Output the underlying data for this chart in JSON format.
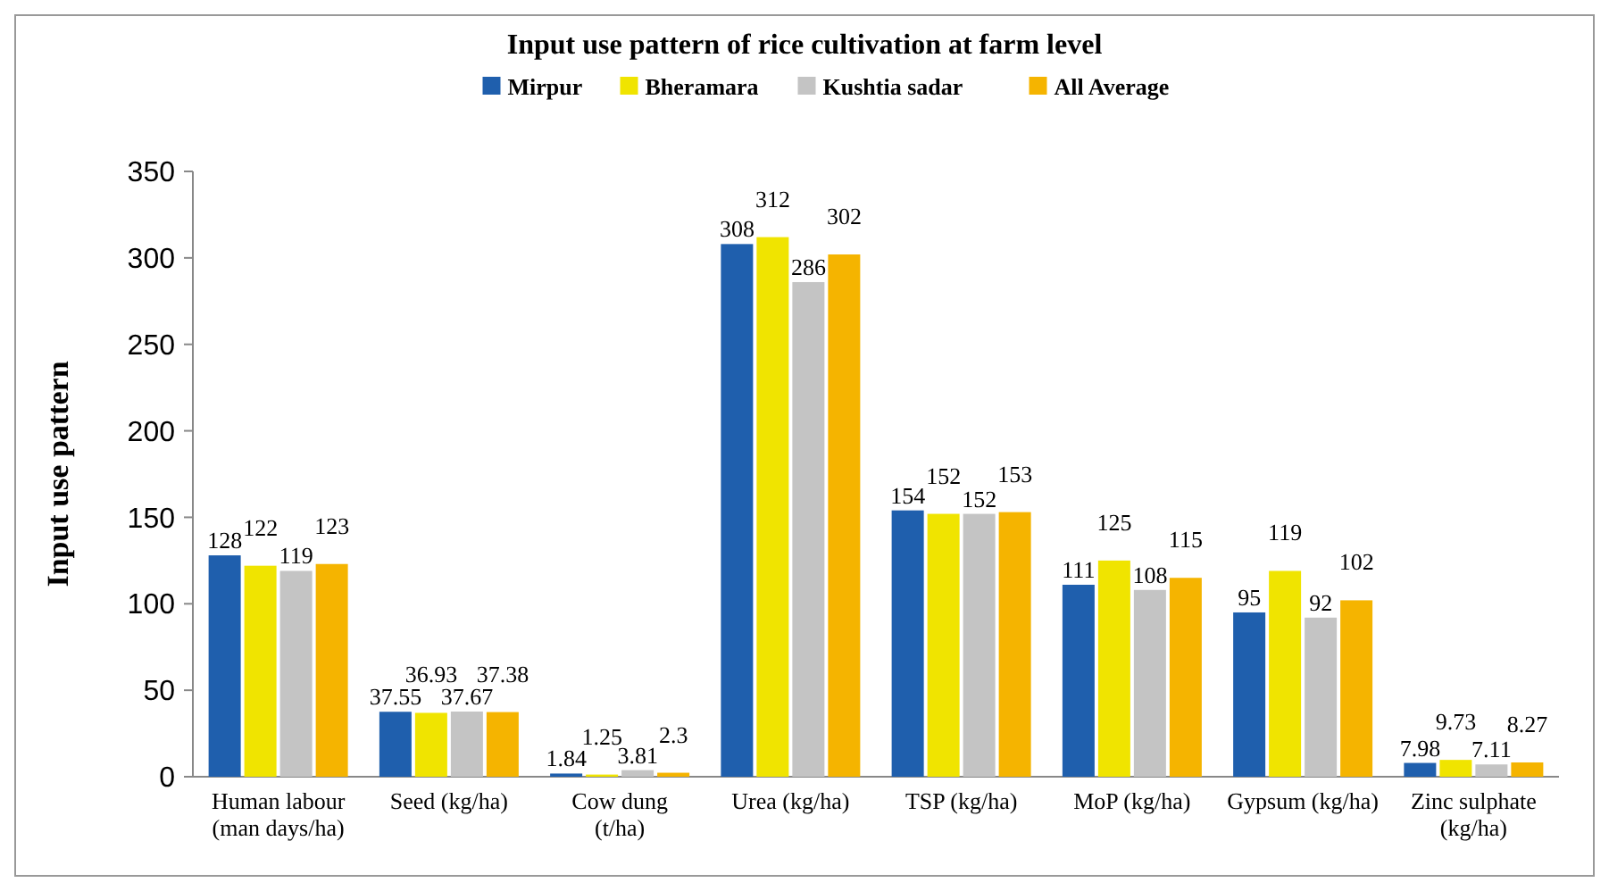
{
  "chart_data": {
    "type": "bar",
    "title": "Input use pattern of rice cultivation at farm level",
    "ylabel": "Input use pattern",
    "categories": [
      "Human labour (man days/ha)",
      "Seed (kg/ha)",
      "Cow dung (t/ha)",
      "Urea (kg/ha)",
      "TSP (kg/ha)",
      "MoP (kg/ha)",
      "Gypsum (kg/ha)",
      "Zinc sulphate (kg/ha)"
    ],
    "series": [
      {
        "name": "Mirpur",
        "color": "#1f5fad",
        "values": [
          128,
          37.55,
          1.84,
          308,
          154,
          111,
          95,
          7.98
        ]
      },
      {
        "name": "Bheramara",
        "color": "#f0e400",
        "values": [
          122,
          36.93,
          1.25,
          312,
          152,
          125,
          119,
          9.73
        ]
      },
      {
        "name": "Kushtia sadar",
        "color": "#c4c4c4",
        "values": [
          119,
          37.67,
          3.81,
          286,
          152,
          108,
          92,
          7.11
        ]
      },
      {
        "name": "All Average",
        "color": "#f5b400",
        "values": [
          123,
          37.38,
          2.3,
          302,
          153,
          115,
          102,
          8.27
        ]
      }
    ],
    "ylim": [
      0,
      350
    ],
    "yticks": [
      0,
      50,
      100,
      150,
      200,
      250,
      300,
      350
    ],
    "grid": false,
    "legend": "top",
    "data_labels": true
  }
}
